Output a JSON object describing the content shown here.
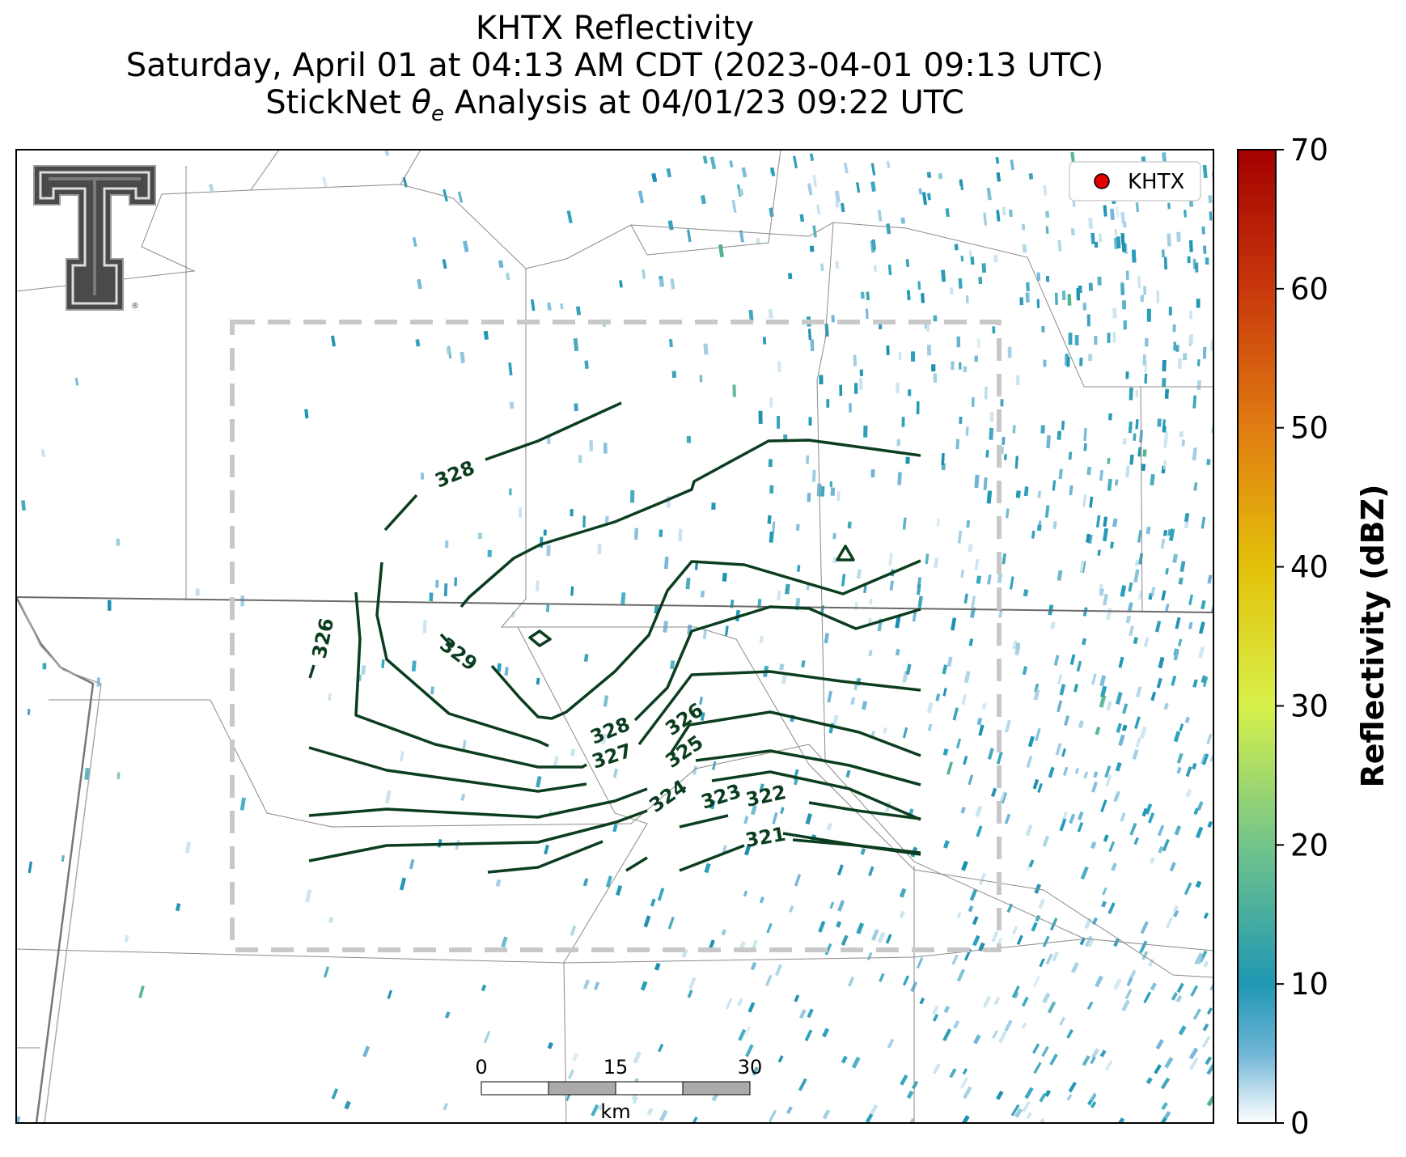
{
  "title": {
    "line1": "KHTX Reflectivity",
    "line2": "Saturday, April 01 at 04:13 AM CDT (2023-04-01 09:13 UTC)",
    "line3_prefix": "StickNet ",
    "line3_symbol": "θ",
    "line3_subscript": "e",
    "line3_suffix": " Analysis at 04/01/23 09:22 UTC"
  },
  "legend": {
    "label": "KHTX",
    "marker_color": "#e00000"
  },
  "colorbar": {
    "label": "Reflectivity (dBZ)",
    "ticks": [
      0,
      10,
      20,
      30,
      40,
      50,
      60,
      70
    ],
    "range": [
      0,
      70
    ],
    "stops": [
      {
        "value": 0,
        "color": "#ffffff"
      },
      {
        "value": 5,
        "color": "#6fb5d6"
      },
      {
        "value": 10,
        "color": "#1f97b3"
      },
      {
        "value": 20,
        "color": "#72c48a"
      },
      {
        "value": 30,
        "color": "#d7f04a"
      },
      {
        "value": 40,
        "color": "#e3c10a"
      },
      {
        "value": 50,
        "color": "#e07c12"
      },
      {
        "value": 60,
        "color": "#c8380c"
      },
      {
        "value": 70,
        "color": "#a30000"
      }
    ]
  },
  "scalebar": {
    "ticks": [
      "0",
      "15",
      "30"
    ],
    "unit": "km"
  },
  "contours": {
    "color": "#0b3d1f",
    "labels": [
      "328",
      "326",
      "329",
      "328",
      "327",
      "326",
      "325",
      "324",
      "323",
      "322",
      "321"
    ]
  },
  "logo": {
    "name": "texas-tech-double-t-logo",
    "mark": "®"
  }
}
